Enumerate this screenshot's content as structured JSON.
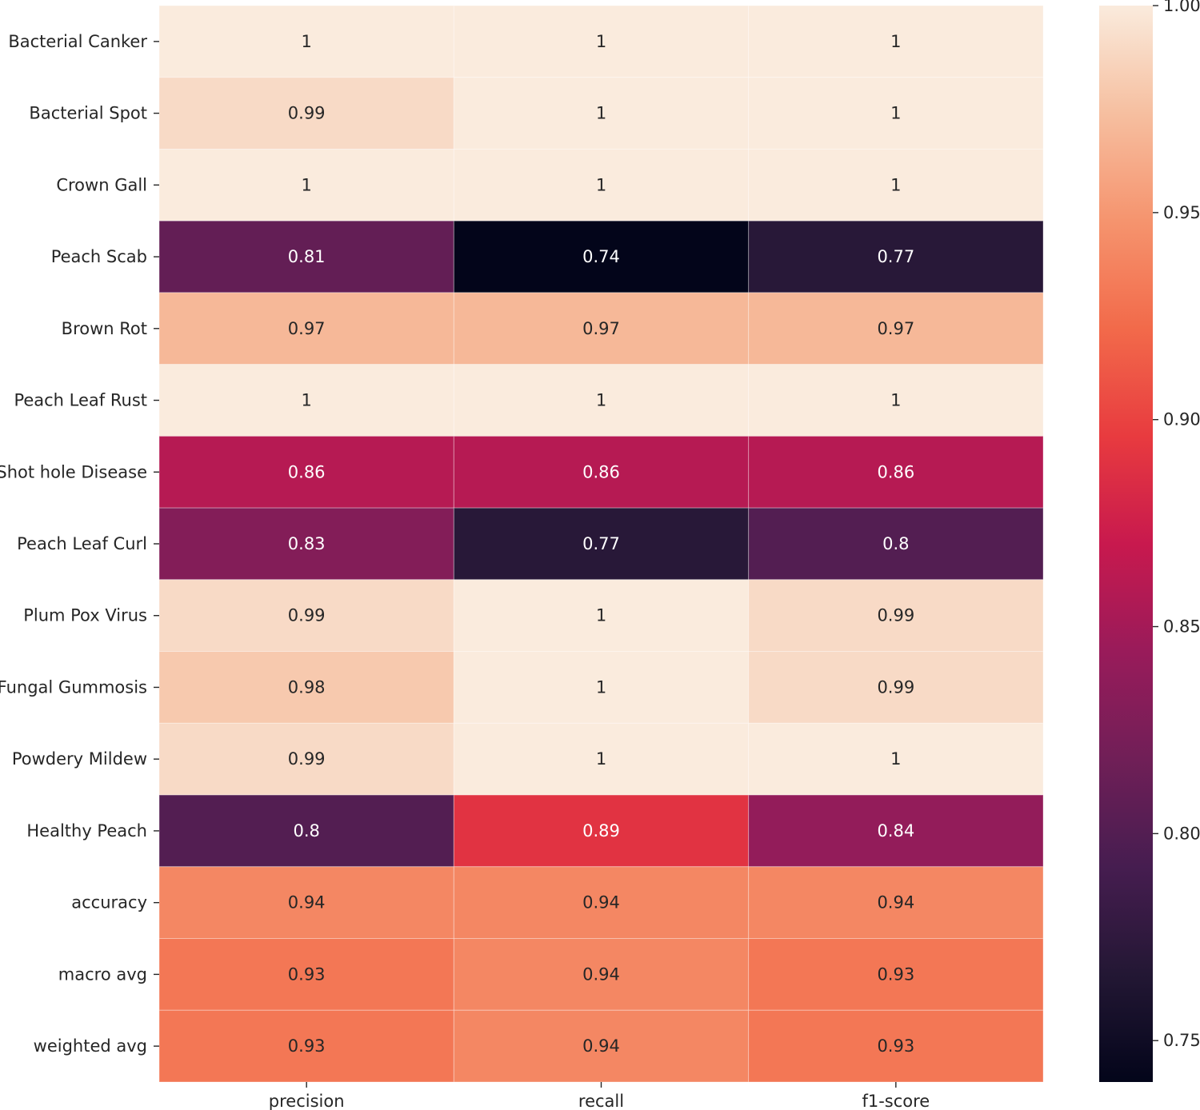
{
  "chart_data": {
    "type": "heatmap",
    "title": "",
    "xlabel": "",
    "ylabel": "",
    "columns": [
      "precision",
      "recall",
      "f1-score"
    ],
    "rows": [
      "Bacterial Canker",
      "Bacterial Spot",
      "Crown Gall",
      "Peach Scab",
      "Brown Rot",
      "Peach Leaf Rust",
      "Shot hole Disease",
      "Peach Leaf Curl",
      "Plum Pox Virus",
      "Fungal Gummosis",
      "Powdery Mildew",
      "Healthy Peach",
      "accuracy",
      "macro avg",
      "weighted avg"
    ],
    "values": [
      [
        1,
        1,
        1
      ],
      [
        0.99,
        1,
        1
      ],
      [
        1,
        1,
        1
      ],
      [
        0.81,
        0.74,
        0.77
      ],
      [
        0.97,
        0.97,
        0.97
      ],
      [
        1,
        1,
        1
      ],
      [
        0.86,
        0.86,
        0.86
      ],
      [
        0.83,
        0.77,
        0.8
      ],
      [
        0.99,
        1,
        0.99
      ],
      [
        0.98,
        1,
        0.99
      ],
      [
        0.99,
        1,
        1
      ],
      [
        0.8,
        0.89,
        0.84
      ],
      [
        0.94,
        0.94,
        0.94
      ],
      [
        0.93,
        0.94,
        0.93
      ],
      [
        0.93,
        0.94,
        0.93
      ]
    ],
    "labels": [
      [
        "1",
        "1",
        "1"
      ],
      [
        "0.99",
        "1",
        "1"
      ],
      [
        "1",
        "1",
        "1"
      ],
      [
        "0.81",
        "0.74",
        "0.77"
      ],
      [
        "0.97",
        "0.97",
        "0.97"
      ],
      [
        "1",
        "1",
        "1"
      ],
      [
        "0.86",
        "0.86",
        "0.86"
      ],
      [
        "0.83",
        "0.77",
        "0.8"
      ],
      [
        "0.99",
        "1",
        "0.99"
      ],
      [
        "0.98",
        "1",
        "0.99"
      ],
      [
        "0.99",
        "1",
        "1"
      ],
      [
        "0.8",
        "0.89",
        "0.84"
      ],
      [
        "0.94",
        "0.94",
        "0.94"
      ],
      [
        "0.93",
        "0.94",
        "0.93"
      ],
      [
        "0.93",
        "0.94",
        "0.93"
      ]
    ],
    "colormap": "rocket",
    "vmin": 0.74,
    "vmax": 1.0,
    "colorbar_ticks": [
      0.75,
      0.8,
      0.85,
      0.9,
      0.95,
      1.0
    ],
    "colorbar_tick_labels": [
      "0.75",
      "0.80",
      "0.85",
      "0.90",
      "0.95",
      "1.00"
    ],
    "legend_position": "right"
  }
}
